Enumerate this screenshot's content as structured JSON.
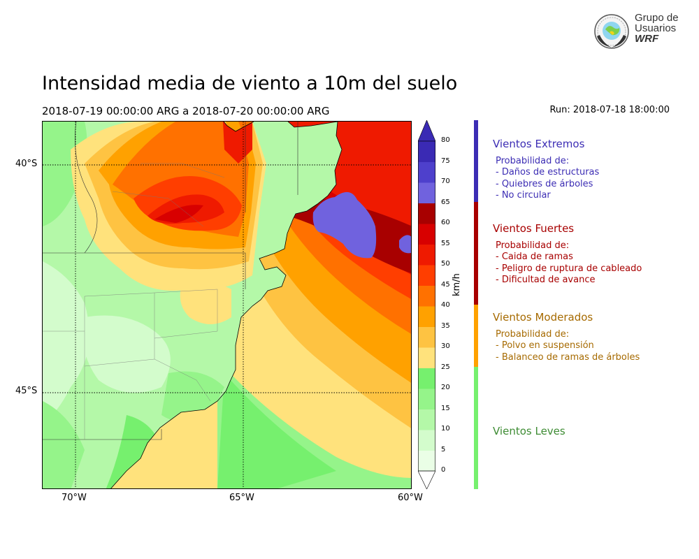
{
  "title": "Intensidad media de viento a 10m del suelo",
  "subtitle": "2018-07-19 00:00:00 ARG  a  2018-07-20 00:00:00 ARG",
  "run": "Run: 2018-07-18 18:00:00",
  "logo": {
    "line1": "Grupo de",
    "line2": "Usuarios",
    "line3": "WRF"
  },
  "map": {
    "lat_labels": [
      "40°S",
      "45°S"
    ],
    "lon_labels": [
      "70°W",
      "65°W",
      "60°W"
    ]
  },
  "colorbar": {
    "unit": "km/h",
    "ticks": [
      "0",
      "5",
      "10",
      "15",
      "20",
      "25",
      "30",
      "35",
      "40",
      "45",
      "50",
      "55",
      "60",
      "65",
      "70",
      "75",
      "80"
    ],
    "colors": [
      "#eafee6",
      "#d3fccc",
      "#b4f8a8",
      "#95f48a",
      "#76f06e",
      "#ffe27c",
      "#fec342",
      "#ffa100",
      "#ff7100",
      "#ff3e00",
      "#ef1a00",
      "#d80000",
      "#a80000",
      "#7062de",
      "#4e40cc",
      "#3a2ab4"
    ],
    "extend_low": "#ffffff",
    "extend_high": "#3a2ab4"
  },
  "legend": {
    "extremos": {
      "title": "Vientos Extremos",
      "color": "#3c2db4",
      "lines": [
        "Probabilidad de:",
        "- Daños de estructuras",
        "- Quiebres de árboles",
        "- No circular"
      ]
    },
    "fuertes": {
      "title": "Vientos Fuertes",
      "color": "#a80000",
      "lines": [
        "Probabilidad de:",
        "- Caida de ramas",
        "- Peligro de ruptura de cableado",
        "- Dificultad de avance"
      ]
    },
    "moderados": {
      "title": "Vientos Moderados",
      "color": "#a66a00",
      "bar_color": "#ffa100",
      "lines": [
        "Probabilidad de:",
        "- Polvo en suspensión",
        "- Balanceo de ramas de árboles"
      ]
    },
    "leves": {
      "title": "Vientos Leves",
      "color": "#3e8c34",
      "bar_color": "#76f06e"
    }
  }
}
